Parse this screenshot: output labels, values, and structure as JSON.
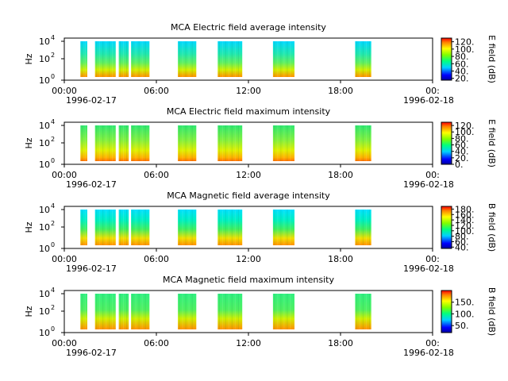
{
  "figure": {
    "x_start": "1996-02-17 00:00",
    "x_end": "1996-02-18 00:00"
  },
  "chart_data": [
    {
      "type": "heatmap",
      "title": "MCA  Electric field average intensity",
      "ylabel": "Hz",
      "y_scale": "log",
      "y_ticks": [
        {
          "base": "10",
          "exp": "0"
        },
        {
          "base": "10",
          "exp": "2"
        },
        {
          "base": "10",
          "exp": "4"
        }
      ],
      "x_ticks": [
        "00:00",
        "06:00",
        "12:00",
        "18:00",
        "00:"
      ],
      "x_tick_hours": [
        0,
        6,
        12,
        18,
        24
      ],
      "x_dates": [
        "1996-02-17",
        "1996-02-18"
      ],
      "colorbar_label": "E field (dB)",
      "colorbar_ticks": [
        "20.",
        "40.",
        "60.",
        "80.",
        "100.",
        "120."
      ],
      "colorbar_values": [
        20,
        40,
        60,
        80,
        100,
        120
      ],
      "colorbar_range": [
        15,
        130
      ],
      "data_hours": [
        [
          1.05,
          1.5
        ],
        [
          2.0,
          3.35
        ],
        [
          3.55,
          4.2
        ],
        [
          4.35,
          5.55
        ],
        [
          7.4,
          8.6
        ],
        [
          10.0,
          11.6
        ],
        [
          13.6,
          15.0
        ],
        [
          18.95,
          20.0
        ]
      ]
    },
    {
      "type": "heatmap",
      "title": "MCA  Electric field maximum intensity",
      "ylabel": "Hz",
      "y_scale": "log",
      "y_ticks": [
        {
          "base": "10",
          "exp": "0"
        },
        {
          "base": "10",
          "exp": "2"
        },
        {
          "base": "10",
          "exp": "4"
        }
      ],
      "x_ticks": [
        "00:00",
        "06:00",
        "12:00",
        "18:00",
        "00:"
      ],
      "x_tick_hours": [
        0,
        6,
        12,
        18,
        24
      ],
      "x_dates": [
        "1996-02-17",
        "1996-02-18"
      ],
      "colorbar_label": "E field (dB)",
      "colorbar_ticks": [
        "0.",
        "20.",
        "40.",
        "60.",
        "80.",
        "100.",
        "120."
      ],
      "colorbar_values": [
        0,
        20,
        40,
        60,
        80,
        100,
        120
      ],
      "colorbar_range": [
        0,
        130
      ],
      "data_hours": [
        [
          1.05,
          1.5
        ],
        [
          2.0,
          3.35
        ],
        [
          3.55,
          4.2
        ],
        [
          4.35,
          5.55
        ],
        [
          7.4,
          8.6
        ],
        [
          10.0,
          11.6
        ],
        [
          13.6,
          15.0
        ],
        [
          18.95,
          20.0
        ]
      ]
    },
    {
      "type": "heatmap",
      "title": "MCA  Magnetic field average intensity",
      "ylabel": "Hz",
      "y_scale": "log",
      "y_ticks": [
        {
          "base": "10",
          "exp": "0"
        },
        {
          "base": "10",
          "exp": "2"
        },
        {
          "base": "10",
          "exp": "4"
        }
      ],
      "x_ticks": [
        "00:00",
        "06:00",
        "12:00",
        "18:00",
        "00:"
      ],
      "x_tick_hours": [
        0,
        6,
        12,
        18,
        24
      ],
      "x_dates": [
        "1996-02-17",
        "1996-02-18"
      ],
      "colorbar_label": "B field (dB)",
      "colorbar_ticks": [
        "40.",
        "60.",
        "80.",
        "100.",
        "120.",
        "140.",
        "160.",
        "180."
      ],
      "colorbar_values": [
        40,
        60,
        80,
        100,
        120,
        140,
        160,
        180
      ],
      "colorbar_range": [
        35,
        190
      ],
      "data_hours": [
        [
          1.05,
          1.5
        ],
        [
          2.0,
          3.35
        ],
        [
          3.55,
          4.2
        ],
        [
          4.35,
          5.55
        ],
        [
          7.4,
          8.6
        ],
        [
          10.0,
          11.6
        ],
        [
          13.6,
          15.0
        ],
        [
          18.95,
          20.0
        ]
      ]
    },
    {
      "type": "heatmap",
      "title": "MCA  Magnetic field maximum intensity",
      "ylabel": "Hz",
      "y_scale": "log",
      "y_ticks": [
        {
          "base": "10",
          "exp": "0"
        },
        {
          "base": "10",
          "exp": "2"
        },
        {
          "base": "10",
          "exp": "4"
        }
      ],
      "x_ticks": [
        "00:00",
        "06:00",
        "12:00",
        "18:00",
        "00:"
      ],
      "x_tick_hours": [
        0,
        6,
        12,
        18,
        24
      ],
      "x_dates": [
        "1996-02-17",
        "1996-02-18"
      ],
      "colorbar_label": "B field (dB)",
      "colorbar_ticks": [
        "50.",
        "100.",
        "150."
      ],
      "colorbar_values": [
        50,
        100,
        150
      ],
      "colorbar_range": [
        20,
        200
      ],
      "data_hours": [
        [
          1.05,
          1.5
        ],
        [
          2.0,
          3.35
        ],
        [
          3.55,
          4.2
        ],
        [
          4.35,
          5.55
        ],
        [
          7.4,
          8.6
        ],
        [
          10.0,
          11.6
        ],
        [
          13.6,
          15.0
        ],
        [
          18.95,
          20.0
        ]
      ]
    }
  ]
}
